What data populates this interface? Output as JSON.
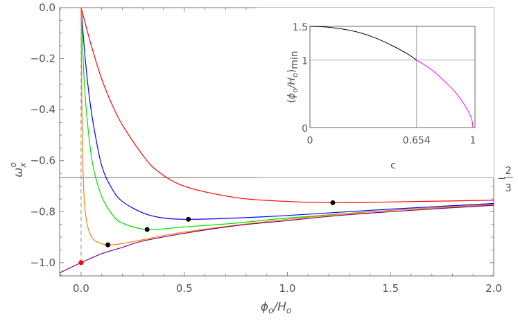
{
  "chart_data": [
    {
      "type": "line",
      "xlabel": {
        "main": "ϕ",
        "sub1": "o",
        "mid": "/H",
        "sub2": "o"
      },
      "ylabel": {
        "main": "ω",
        "sub": "x",
        "sup": "o"
      },
      "xlim": [
        -0.104,
        2.0
      ],
      "ylim": [
        -1.052,
        0.0
      ],
      "x_ticks": [
        "0.0",
        "0.5",
        "1.0",
        "1.5",
        "2.0"
      ],
      "x_tick_values": [
        0,
        0.5,
        1.0,
        1.5,
        2.0
      ],
      "y_ticks": [
        "0.0",
        "−0.2",
        "−0.4",
        "−0.6",
        "−0.8",
        "−1.0"
      ],
      "y_tick_values": [
        0,
        -0.2,
        -0.4,
        -0.6,
        -0.8,
        -1.0
      ],
      "hline": {
        "y": -0.6667,
        "label_sign": "−",
        "label_num": "2",
        "label_den": "3",
        "color": "#888888"
      },
      "vline": {
        "x": 0,
        "y_from": -1.0,
        "y_to": 0,
        "style": "dashed",
        "color": "#888888"
      },
      "grid": false,
      "series": [
        {
          "color": "#ff0000",
          "x": [
            0,
            0.05,
            0.1,
            0.15,
            0.2,
            0.3,
            0.37,
            0.5,
            0.75,
            1.0,
            1.22,
            1.5,
            2.0
          ],
          "y": [
            0,
            -0.15,
            -0.28,
            -0.38,
            -0.46,
            -0.58,
            -0.64,
            -0.7,
            -0.745,
            -0.76,
            -0.765,
            -0.762,
            -0.755
          ]
        },
        {
          "color": "#0000ff",
          "x": [
            0,
            0.02,
            0.04,
            0.06,
            0.1,
            0.15,
            0.2,
            0.3,
            0.4,
            0.52,
            0.75,
            1.0,
            1.5,
            2.0
          ],
          "y": [
            0,
            -0.2,
            -0.35,
            -0.46,
            -0.62,
            -0.71,
            -0.76,
            -0.805,
            -0.825,
            -0.83,
            -0.825,
            -0.815,
            -0.79,
            -0.768
          ]
        },
        {
          "color": "#00e000",
          "x": [
            0,
            0.01,
            0.02,
            0.04,
            0.06,
            0.1,
            0.15,
            0.2,
            0.32,
            0.5,
            0.75,
            1.0,
            1.5,
            2.0
          ],
          "y": [
            0,
            -0.2,
            -0.35,
            -0.52,
            -0.63,
            -0.74,
            -0.81,
            -0.845,
            -0.87,
            -0.86,
            -0.845,
            -0.825,
            -0.795,
            -0.772
          ]
        },
        {
          "color": "#ff8000",
          "x": [
            0,
            0.004,
            0.01,
            0.02,
            0.04,
            0.07,
            0.13,
            0.2,
            0.3,
            0.5,
            1.0,
            1.5,
            2.0
          ],
          "y": [
            0,
            -0.4,
            -0.65,
            -0.8,
            -0.88,
            -0.915,
            -0.93,
            -0.925,
            -0.91,
            -0.88,
            -0.83,
            -0.795,
            -0.772
          ]
        },
        {
          "color": "#800080",
          "x": [
            -0.104,
            0,
            0.1,
            0.2,
            0.3,
            0.5,
            0.75,
            1.0,
            1.25,
            1.5,
            1.75,
            2.0
          ],
          "y": [
            -1.04,
            -1.0,
            -0.965,
            -0.94,
            -0.915,
            -0.885,
            -0.855,
            -0.835,
            -0.815,
            -0.8,
            -0.787,
            -0.775
          ]
        }
      ],
      "markers": [
        {
          "x": 0,
          "y": -1.0,
          "color": "#ff0000"
        },
        {
          "x": 0.13,
          "y": -0.93,
          "color": "#000000"
        },
        {
          "x": 0.32,
          "y": -0.87,
          "color": "#000000"
        },
        {
          "x": 0.52,
          "y": -0.83,
          "color": "#000000"
        },
        {
          "x": 1.22,
          "y": -0.765,
          "color": "#000000"
        }
      ]
    },
    {
      "type": "line",
      "placement": "inset-top-right",
      "xlabel": "c",
      "ylabel": {
        "open": "(",
        "main": "ϕ",
        "sub1": "o",
        "mid": "/H",
        "sub2": "o",
        "close": ")",
        "tail": "min"
      },
      "xlim": [
        0,
        1
      ],
      "ylim": [
        0,
        1.5
      ],
      "x_ticks": [
        "0",
        "0.654",
        "1"
      ],
      "x_tick_values": [
        0,
        0.654,
        1
      ],
      "y_ticks": [
        "0",
        "1",
        "1.5"
      ],
      "y_tick_values": [
        0,
        1,
        1.5
      ],
      "gridlines": {
        "x": 0.654,
        "y": 1
      },
      "series": [
        {
          "color": "#000000",
          "x": [
            0,
            0.1,
            0.2,
            0.3,
            0.4,
            0.5,
            0.6,
            0.654
          ],
          "y": [
            1.5,
            1.49,
            1.46,
            1.41,
            1.33,
            1.22,
            1.09,
            1.0
          ]
        },
        {
          "color": "#ff00ff",
          "x": [
            0.654,
            0.75,
            0.85,
            0.9,
            0.95,
            0.98,
            0.995,
            1.0
          ],
          "y": [
            1.0,
            0.85,
            0.63,
            0.5,
            0.33,
            0.2,
            0.1,
            0
          ]
        }
      ]
    }
  ]
}
